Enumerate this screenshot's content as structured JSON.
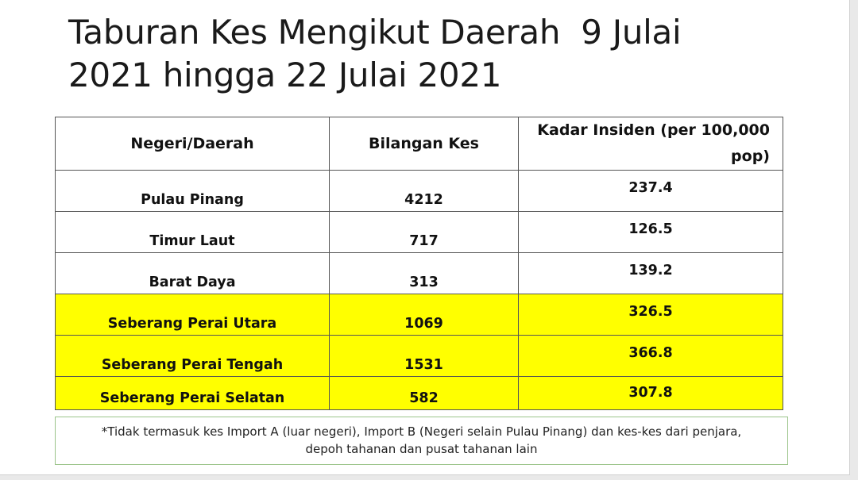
{
  "title": {
    "line1": "Taburan Kes Mengikut Daerah  9 Julai",
    "line2": "2021 hingga 22 Julai 2021"
  },
  "table": {
    "headers": {
      "region": "Negeri/Daerah",
      "cases": "Bilangan Kes",
      "incidence": "Kadar Insiden (per 100,000 pop)"
    },
    "rows": [
      {
        "region": "Pulau Pinang",
        "cases": "4212",
        "incidence": "237.4"
      },
      {
        "region": "Timur Laut",
        "cases": "717",
        "incidence": "126.5"
      },
      {
        "region": "Barat Daya",
        "cases": "313",
        "incidence": "139.2"
      },
      {
        "region": "Seberang Perai Utara",
        "cases": "1069",
        "incidence": "326.5"
      },
      {
        "region": "Seberang Perai Tengah",
        "cases": "1531",
        "incidence": "366.8"
      },
      {
        "region": "Seberang Perai Selatan",
        "cases": "582",
        "incidence": "307.8"
      }
    ]
  },
  "highlight_color": "#ffff00",
  "note": {
    "line1": "*Tidak termasuk kes Import A (luar negeri), Import B (Negeri selain Pulau Pinang) dan kes-kes dari penjara,",
    "line2": "depoh tahanan dan pusat tahanan lain"
  }
}
